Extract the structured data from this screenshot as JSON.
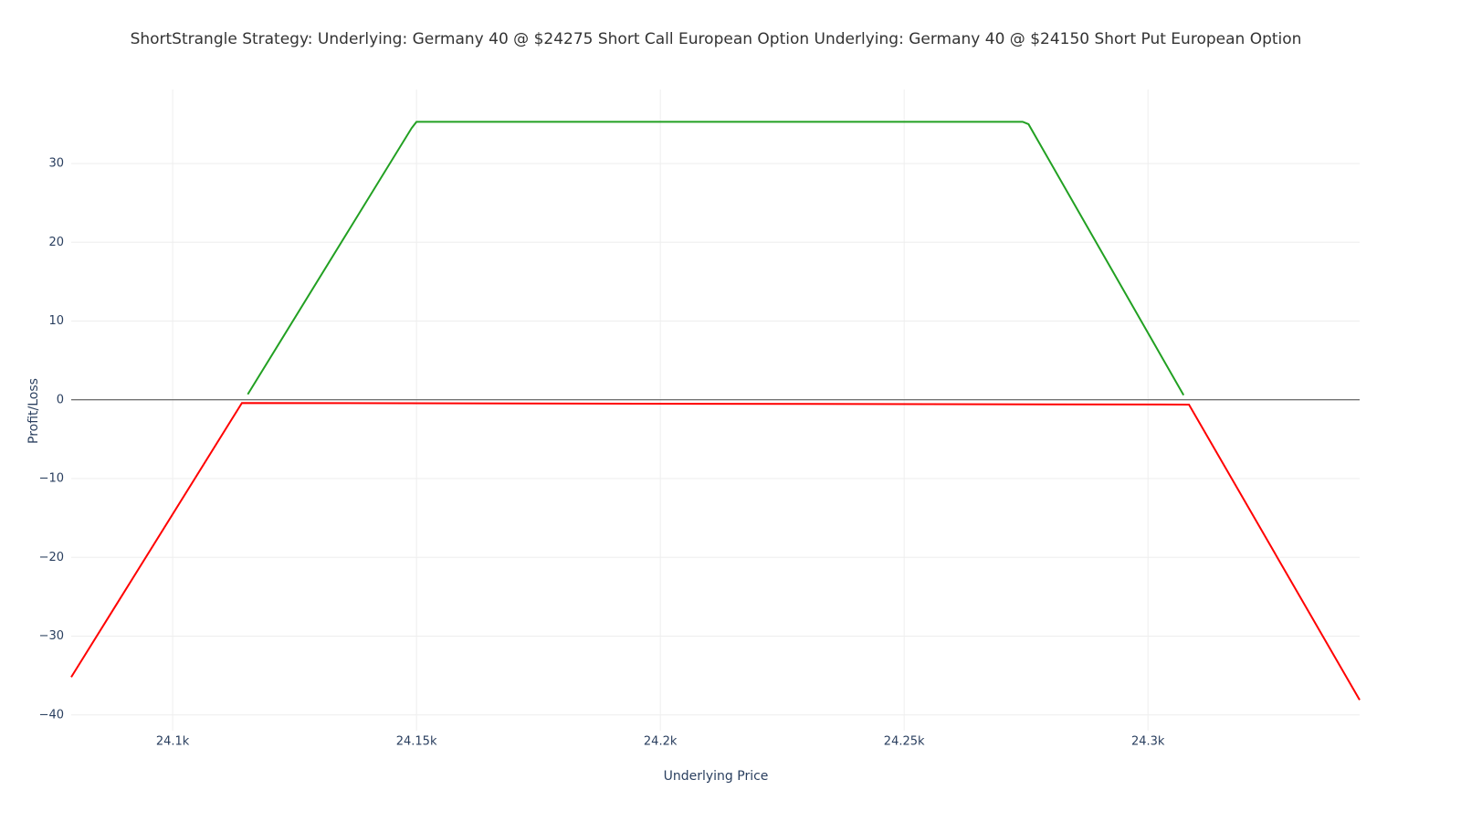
{
  "chart_data": {
    "type": "line",
    "title": "ShortStrangle Strategy:   Underlying: Germany 40 @ $24275 Short Call European Option  Underlying: Germany 40 @ $24150 Short Put European Option",
    "x_label": "Underlying Price",
    "y_label": "Profit/Loss",
    "series": [
      {
        "color": "#22a022",
        "x": [
          24115.4,
          24149,
          24150,
          24274.3,
          24275.5,
          24307.3
        ],
        "values": [
          0.7,
          34.5,
          35.3,
          35.3,
          35.0,
          0.6
        ]
      },
      {
        "color": "#ff0000",
        "x": [
          24079.2,
          24114.2,
          24308.4,
          24343.4
        ],
        "values": [
          -35.2,
          -0.4,
          -0.6,
          -38.1
        ]
      }
    ],
    "xlim": [
      24079.2,
      24343.4
    ],
    "ylim": [
      -42,
      39.4
    ],
    "xticks": [
      {
        "value": 24100,
        "label": "24.1k"
      },
      {
        "value": 24150,
        "label": "24.15k"
      },
      {
        "value": 24200,
        "label": "24.2k"
      },
      {
        "value": 24250,
        "label": "24.25k"
      },
      {
        "value": 24300,
        "label": "24.3k"
      }
    ],
    "yticks": [
      {
        "value": -40,
        "label": "−40"
      },
      {
        "value": -30,
        "label": "−30"
      },
      {
        "value": -20,
        "label": "−20"
      },
      {
        "value": -10,
        "label": "−10"
      },
      0,
      10,
      20,
      30
    ],
    "grid": true,
    "zeroline": true
  }
}
